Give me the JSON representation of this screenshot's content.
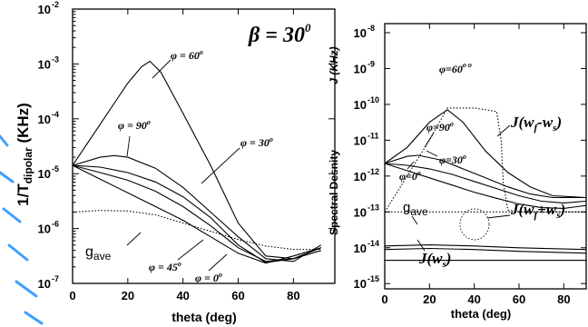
{
  "chart_data": [
    {
      "type": "line",
      "title": "β = 30⁰",
      "xlabel": "theta (deg)",
      "ylabel": "1/T dipolar (KHz)",
      "xlim": [
        0,
        95
      ],
      "ylim_log10": [
        -7,
        -2
      ],
      "y_scale": "log",
      "x_ticks": [
        0,
        20,
        40,
        60,
        80
      ],
      "y_tick_exponents": [
        -7,
        -6,
        -5,
        -4,
        -3,
        -2
      ],
      "grid": false,
      "series": [
        {
          "name": "φ = 60°",
          "x": [
            0,
            10,
            20,
            25,
            28,
            32,
            40,
            50,
            60,
            70,
            80,
            90
          ],
          "log10y": [
            -4.85,
            -4.1,
            -3.35,
            -3.05,
            -2.95,
            -3.15,
            -3.9,
            -4.85,
            -5.9,
            -6.5,
            -6.55,
            -6.35
          ]
        },
        {
          "name": "φ = 90°",
          "x": [
            0,
            10,
            15,
            20,
            30,
            40,
            50,
            60,
            70,
            80,
            90
          ],
          "log10y": [
            -4.85,
            -4.7,
            -4.67,
            -4.7,
            -4.9,
            -5.25,
            -5.7,
            -6.15,
            -6.55,
            -6.6,
            -6.3
          ]
        },
        {
          "name": "φ = 30°",
          "x": [
            0,
            10,
            20,
            30,
            40,
            50,
            60,
            70,
            80,
            90
          ],
          "log10y": [
            -4.85,
            -4.88,
            -4.98,
            -5.15,
            -5.42,
            -5.8,
            -6.3,
            -6.62,
            -6.55,
            -6.4
          ]
        },
        {
          "name": "φ = 45°",
          "x": [
            0,
            10,
            20,
            30,
            40,
            50,
            60,
            70,
            80,
            90
          ],
          "log10y": [
            -4.85,
            -4.98,
            -5.12,
            -5.32,
            -5.6,
            -5.95,
            -6.35,
            -6.6,
            -6.55,
            -6.35
          ]
        },
        {
          "name": "φ = 0°",
          "x": [
            0,
            10,
            20,
            30,
            40,
            50,
            60,
            70,
            80,
            90
          ],
          "log10y": [
            -4.85,
            -5.1,
            -5.35,
            -5.6,
            -5.85,
            -6.15,
            -6.45,
            -6.63,
            -6.5,
            -6.35
          ]
        },
        {
          "name": "gave",
          "style": "dotted",
          "x": [
            0,
            10,
            20,
            30,
            40,
            50,
            60,
            70,
            80,
            90
          ],
          "log10y": [
            -5.7,
            -5.67,
            -5.68,
            -5.75,
            -5.9,
            -6.05,
            -6.2,
            -6.32,
            -6.38,
            -6.38
          ]
        }
      ],
      "annotations": [
        {
          "text": "β = 30",
          "sup": "0",
          "style": "title"
        },
        {
          "text": "φ = 60",
          "sup": "o"
        },
        {
          "text": "φ = 90",
          "sup": "o"
        },
        {
          "text": "φ = 30",
          "sup": "o"
        },
        {
          "text": "φ = 45",
          "sup": "o"
        },
        {
          "text": "φ = 0",
          "sup": "o"
        },
        {
          "text": "g",
          "sub": "ave"
        }
      ]
    },
    {
      "type": "line",
      "xlabel": "theta (deg)",
      "ylabel": "Spectral Desnity",
      "ylabel2": "J (KHz)",
      "xlim": [
        0,
        90
      ],
      "y_scale": "log",
      "ylim_log10": [
        -15.5,
        -8
      ],
      "x_ticks": [
        0,
        20,
        40,
        60,
        80
      ],
      "y_tick_exponents": [
        -8,
        -9,
        -10,
        -11,
        -12,
        -13,
        -14,
        -15
      ],
      "grid": false,
      "series": [
        {
          "name": "φ = 60°",
          "x": [
            0,
            10,
            20,
            28,
            35,
            45,
            55,
            65,
            75,
            90
          ],
          "log10y": [
            -11.65,
            -11.2,
            -10.5,
            -10.15,
            -10.5,
            -11.3,
            -11.9,
            -12.3,
            -12.55,
            -12.6
          ]
        },
        {
          "name": "φ = 90°",
          "x": [
            0,
            10,
            15,
            25,
            35,
            45,
            55,
            65,
            75,
            90
          ],
          "log10y": [
            -11.65,
            -11.45,
            -11.42,
            -11.55,
            -11.8,
            -12.05,
            -12.3,
            -12.5,
            -12.6,
            -12.6
          ]
        },
        {
          "name": "φ = 30°",
          "x": [
            0,
            10,
            20,
            30,
            40,
            50,
            60,
            70,
            80,
            90
          ],
          "log10y": [
            -11.65,
            -11.7,
            -11.8,
            -11.95,
            -12.15,
            -12.35,
            -12.55,
            -12.7,
            -12.75,
            -12.7
          ]
        },
        {
          "name": "φ = 0°",
          "x": [
            0,
            10,
            20,
            30,
            40,
            50,
            60,
            70,
            80,
            90
          ],
          "log10y": [
            -11.65,
            -11.85,
            -12.05,
            -12.25,
            -12.45,
            -12.62,
            -12.78,
            -12.88,
            -12.9,
            -12.82
          ]
        },
        {
          "name": "J(wf-ws)",
          "style": "dotted",
          "x": [
            0,
            20,
            28,
            40,
            50,
            52,
            53,
            55,
            60,
            90
          ],
          "log10y": [
            -13.0,
            -11.0,
            -10.1,
            -10.1,
            -10.2,
            -11.0,
            -12.2,
            -12.95,
            -13.0,
            -13.0
          ]
        },
        {
          "name": "J(wf+ws)",
          "x": [
            0,
            20,
            40,
            60,
            90
          ],
          "log10y": [
            -13.95,
            -13.92,
            -13.95,
            -14.0,
            -14.05
          ]
        },
        {
          "name": "J(wf+ws) lower",
          "x": [
            0,
            20,
            40,
            60,
            90
          ],
          "log10y": [
            -14.05,
            -14.02,
            -14.05,
            -14.1,
            -14.15
          ]
        },
        {
          "name": "J(ws)",
          "x": [
            0,
            90
          ],
          "log10y": [
            -14.35,
            -14.35
          ]
        },
        {
          "name": "gave",
          "style": "dotted",
          "x": [
            0,
            90
          ],
          "log10y": [
            -13.0,
            -13.0
          ]
        }
      ],
      "annotations": [
        {
          "text": "φ = 60",
          "sup": "o"
        },
        {
          "text": "φ = 90",
          "sup": "o"
        },
        {
          "text": "φ = 30",
          "sup": "o"
        },
        {
          "text": "φ = 0",
          "sup": "o"
        },
        {
          "text": "J(w",
          "sub": "f",
          "tail": "-w",
          "sub2": "s",
          "end": ")"
        },
        {
          "text": "J(w",
          "sub": "f",
          "tail": "+w",
          "sub2": "s",
          "end": ")"
        },
        {
          "text": "J(w",
          "sub": "s",
          "end": ")"
        },
        {
          "text": "g",
          "sub": "ave"
        }
      ]
    }
  ],
  "decor": {
    "watermark_color": "#1e90ff"
  }
}
